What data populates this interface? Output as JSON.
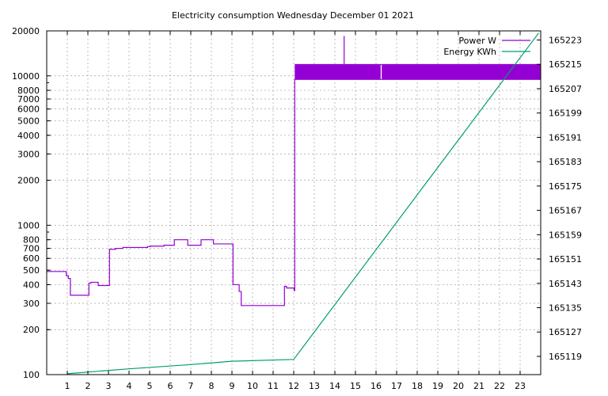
{
  "chart_data": {
    "type": "line",
    "title": "Electricity consumption Wednesday December 01 2021",
    "xlabel": "",
    "ylabel": "",
    "xlim": [
      0,
      24
    ],
    "x_ticks": [
      1,
      2,
      3,
      4,
      5,
      6,
      7,
      8,
      9,
      10,
      11,
      12,
      13,
      14,
      15,
      16,
      17,
      18,
      19,
      20,
      21,
      22,
      23
    ],
    "y_scale": "log",
    "ylim": [
      100,
      20000
    ],
    "y_ticks": [
      100,
      200,
      300,
      400,
      500,
      600,
      700,
      800,
      1000,
      2000,
      3000,
      4000,
      5000,
      6000,
      7000,
      8000,
      10000,
      20000
    ],
    "y2lim": [
      165113,
      165226
    ],
    "y2_ticks": [
      165119,
      165127,
      165135,
      165143,
      165151,
      165159,
      165167,
      165175,
      165183,
      165191,
      165199,
      165207,
      165215,
      165223
    ],
    "grid": true,
    "legend_position": "top-right",
    "series": [
      {
        "name": "Power W",
        "color": "#9400d3",
        "axis": "left",
        "style": "steps",
        "x": [
          0,
          0.95,
          0.95,
          1.05,
          1.05,
          1.15,
          1.15,
          1.7,
          1.7,
          2.05,
          2.05,
          2.15,
          2.15,
          2.5,
          2.5,
          2.95,
          2.95,
          3.05,
          3.05,
          3.35,
          3.35,
          3.7,
          3.7,
          4.9,
          4.9,
          5.05,
          5.05,
          5.7,
          5.7,
          6.2,
          6.2,
          6.85,
          6.85,
          7.5,
          7.5,
          8.1,
          8.1,
          8.8,
          8.8,
          9.05,
          9.05,
          9.35,
          9.35,
          9.45,
          9.45,
          11.1,
          11.1,
          11.55,
          11.55,
          11.65,
          11.65,
          11.95,
          11.95,
          12.02,
          12.02,
          12.05,
          12.05
        ],
        "values": [
          490,
          490,
          460,
          460,
          440,
          440,
          340,
          340,
          340,
          340,
          410,
          410,
          415,
          415,
          395,
          395,
          395,
          395,
          690,
          690,
          700,
          700,
          710,
          710,
          720,
          720,
          725,
          725,
          735,
          735,
          800,
          800,
          735,
          735,
          800,
          800,
          750,
          750,
          750,
          750,
          400,
          400,
          360,
          360,
          290,
          290,
          290,
          290,
          390,
          390,
          380,
          380,
          380,
          380,
          365,
          365,
          9500
        ]
      },
      {
        "name": "Energy KWh",
        "color": "#009e73",
        "axis": "right",
        "style": "lines",
        "x": [
          1,
          4,
          7,
          9,
          12,
          23.9
        ],
        "values": [
          165113.3,
          165114.9,
          165116.3,
          165117.4,
          165118.0,
          165225.3
        ]
      }
    ],
    "annotations": [
      {
        "kind": "band",
        "series": "Power W",
        "x_start": 12.05,
        "x_end": 24,
        "y_low": 9400,
        "y_high": 12000
      },
      {
        "kind": "spike",
        "series": "Power W",
        "x": 14.45,
        "y_low": 12000,
        "y_high": 18500
      },
      {
        "kind": "gap",
        "series": "Power W",
        "x": 16.25
      }
    ]
  }
}
